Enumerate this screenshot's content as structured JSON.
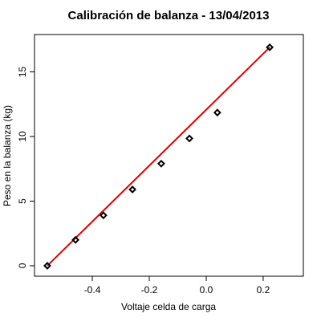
{
  "chart_data": {
    "type": "scatter",
    "title": "Calibración de balanza - 13/04/2013",
    "x_label": "Voltaje celda de carga",
    "y_label": "Peso en la balanza (kg)",
    "series": [
      {
        "color": "#000000",
        "x": [
          -0.558,
          -0.459,
          -0.361,
          -0.259,
          -0.158,
          -0.059,
          0.039,
          0.223
        ],
        "values": [
          0,
          2,
          3.9,
          5.9,
          7.9,
          9.85,
          11.85,
          16.9
        ]
      }
    ],
    "fit_line": {
      "color": "#e00000",
      "x": [
        -0.558,
        0.223
      ],
      "values": [
        0,
        16.9
      ]
    },
    "xlim": [
      -0.603,
      0.341
    ],
    "xticks": [
      -0.4,
      -0.2,
      {
        "value": 0,
        "label": "0.0"
      },
      0.2
    ],
    "ylim": [
      -0.81,
      17.89
    ],
    "yticks": [
      0,
      5,
      10,
      15
    ]
  }
}
